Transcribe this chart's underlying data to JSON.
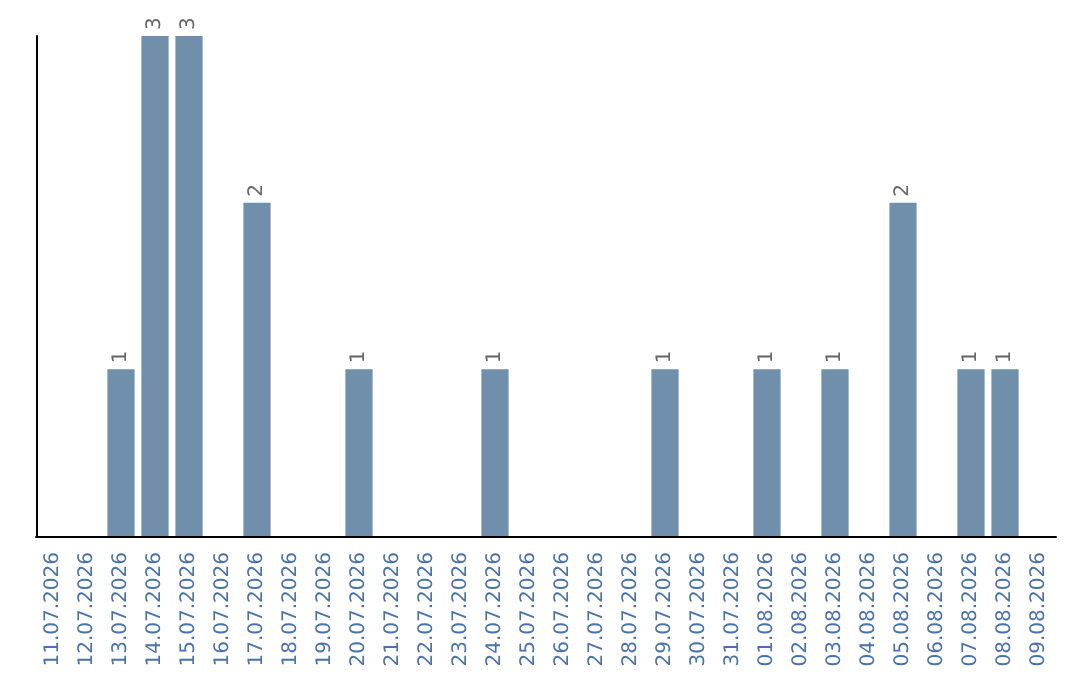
{
  "chart_data": {
    "type": "bar",
    "categories": [
      "11.07.2026",
      "12.07.2026",
      "13.07.2026",
      "14.07.2026",
      "15.07.2026",
      "16.07.2026",
      "17.07.2026",
      "18.07.2026",
      "19.07.2026",
      "20.07.2026",
      "21.07.2026",
      "22.07.2026",
      "23.07.2026",
      "24.07.2026",
      "25.07.2026",
      "26.07.2026",
      "27.07.2026",
      "28.07.2026",
      "29.07.2026",
      "30.07.2026",
      "31.07.2026",
      "01.08.2026",
      "02.08.2026",
      "03.08.2026",
      "04.08.2026",
      "05.08.2026",
      "06.08.2026",
      "07.08.2026",
      "08.08.2026",
      "09.08.2026"
    ],
    "values": [
      0,
      0,
      1,
      3,
      3,
      0,
      2,
      0,
      0,
      1,
      0,
      0,
      0,
      1,
      0,
      0,
      0,
      0,
      1,
      0,
      0,
      1,
      0,
      1,
      0,
      2,
      0,
      1,
      1,
      0
    ],
    "value_labels": [
      null,
      null,
      "1",
      "3",
      "3",
      null,
      "2",
      null,
      null,
      "1",
      null,
      null,
      null,
      "1",
      null,
      null,
      null,
      null,
      "1",
      null,
      null,
      "1",
      null,
      "1",
      null,
      "2",
      null,
      "1",
      "1",
      null
    ],
    "color": "#6f8faa"
  }
}
